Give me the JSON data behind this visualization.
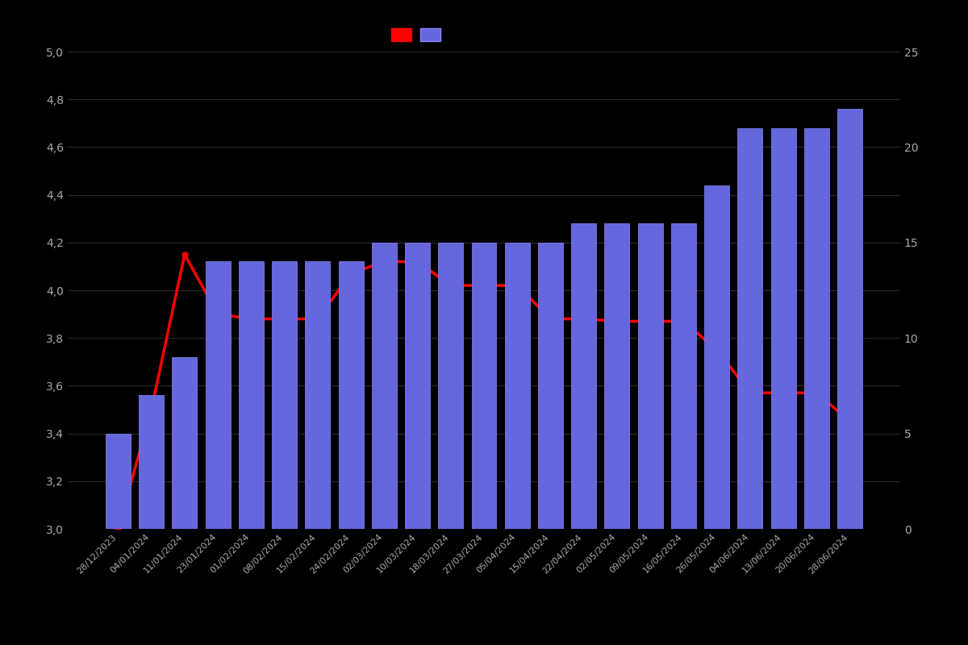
{
  "dates": [
    "28/12/2023",
    "04/01/2024",
    "11/01/2024",
    "23/01/2024",
    "01/02/2024",
    "08/02/2024",
    "15/02/2024",
    "24/02/2024",
    "02/03/2024",
    "10/03/2024",
    "18/03/2024",
    "27/03/2024",
    "05/04/2024",
    "15/04/2024",
    "22/04/2024",
    "02/05/2024",
    "09/05/2024",
    "16/05/2024",
    "26/05/2024",
    "04/06/2024",
    "13/06/2024",
    "20/06/2024",
    "28/06/2024"
  ],
  "bar_values": [
    5,
    7,
    9,
    14,
    14,
    14,
    14,
    14,
    15,
    15,
    15,
    15,
    15,
    15,
    16,
    16,
    16,
    16,
    18,
    21,
    21,
    21,
    22
  ],
  "line_values": [
    3.0,
    3.5,
    4.15,
    3.9,
    3.88,
    3.88,
    3.88,
    4.07,
    4.12,
    4.12,
    4.02,
    4.02,
    4.02,
    3.88,
    3.88,
    3.87,
    3.87,
    3.87,
    3.75,
    3.57,
    3.57,
    3.57,
    3.45
  ],
  "bar_color": "#6666dd",
  "bar_edgecolor": "#8888ff",
  "line_color": "#ff0000",
  "background_color": "#000000",
  "text_color": "#aaaaaa",
  "ylim_left": [
    3.0,
    5.0
  ],
  "ylim_right": [
    0,
    25
  ],
  "yticks_left": [
    3.0,
    3.2,
    3.4,
    3.6,
    3.8,
    4.0,
    4.2,
    4.4,
    4.6,
    4.8,
    5.0
  ],
  "yticks_right": [
    0,
    5,
    10,
    15,
    20,
    25
  ],
  "figsize": [
    12.0,
    8.0
  ],
  "dpi": 100
}
